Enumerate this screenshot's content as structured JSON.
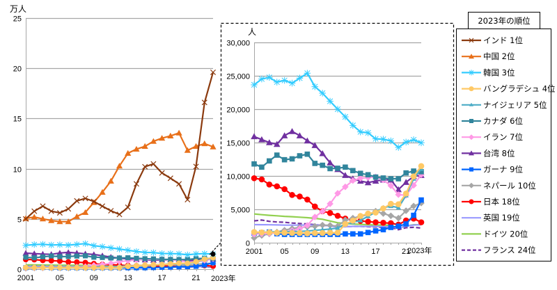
{
  "chart_data": [
    {
      "id": "main",
      "type": "line",
      "title": "",
      "ylabel": "万人",
      "xlabel": "",
      "ylim": [
        0,
        25
      ],
      "yticks": [
        0,
        5,
        10,
        15,
        20,
        25
      ],
      "ytick_labels": [
        "0",
        "5",
        "10",
        "15",
        "20",
        "25"
      ],
      "xlim": [
        2001,
        2023
      ],
      "xticks": [
        2001,
        2005,
        2009,
        2013,
        2017,
        2021
      ],
      "xtick_labels": [
        "2001",
        "05",
        "09",
        "13",
        "17",
        "21"
      ],
      "x_end_label": "2023年",
      "grid": "horizontal",
      "unit_divisor": 10000,
      "highlight_note": "2023 Korea point marked and linked to the detail inset"
    },
    {
      "id": "inset",
      "type": "line",
      "title": "",
      "ylabel": "人",
      "xlabel": "",
      "ylim": [
        0,
        30000
      ],
      "yticks": [
        0,
        5000,
        10000,
        15000,
        20000,
        25000,
        30000
      ],
      "ytick_labels": [
        "0",
        "5,000",
        "10,000",
        "15,000",
        "20,000",
        "25,000",
        "30,000"
      ],
      "xlim": [
        2001,
        2023
      ],
      "xticks": [
        2001,
        2005,
        2009,
        2013,
        2017,
        2021
      ],
      "xtick_labels": [
        "2001",
        "05",
        "09",
        "13",
        "17",
        "21"
      ],
      "x_end_label": "2023年",
      "grid": "horizontal",
      "series_shown": [
        "korea",
        "bangladesh",
        "nigeria",
        "canada",
        "iran",
        "taiwan",
        "ghana",
        "nepal",
        "japan",
        "uk",
        "germany",
        "france"
      ]
    }
  ],
  "x": [
    2001,
    2002,
    2003,
    2004,
    2005,
    2006,
    2007,
    2008,
    2009,
    2010,
    2011,
    2012,
    2013,
    2014,
    2015,
    2016,
    2017,
    2018,
    2019,
    2020,
    2021,
    2022,
    2023
  ],
  "series": [
    {
      "key": "india",
      "name": "インド 1位",
      "color": "#8B3A0E",
      "marker": "x",
      "dash": false,
      "values": [
        50000,
        57700,
        62700,
        57700,
        56000,
        60000,
        68000,
        70400,
        67400,
        62700,
        58100,
        54500,
        61600,
        84900,
        102000,
        104800,
        95800,
        90500,
        84900,
        69200,
        102200,
        166000,
        196000
      ]
    },
    {
      "key": "china",
      "name": "中国 2位",
      "color": "#E8701A",
      "marker": "triangle",
      "dash": false,
      "values": [
        50500,
        51900,
        50100,
        48400,
        47300,
        47300,
        52400,
        56500,
        66400,
        76600,
        87700,
        102700,
        115400,
        119500,
        122300,
        127300,
        130400,
        132700,
        135600,
        118300,
        122300,
        125000,
        121800
      ]
    },
    {
      "key": "korea",
      "name": "韓国 3位",
      "color": "#33CCFF",
      "marker": "asterisk",
      "dash": false,
      "values": [
        23650,
        24520,
        24760,
        24060,
        24310,
        23900,
        24650,
        25390,
        23370,
        22400,
        21190,
        20000,
        18850,
        17570,
        16600,
        16460,
        15560,
        15500,
        15250,
        14270,
        15070,
        15420,
        14970
      ]
    },
    {
      "key": "bangladesh",
      "name": "バングラデシュ 4位",
      "color": "#FFC966",
      "marker": "circle",
      "dash": false,
      "values": [
        1600,
        1550,
        1550,
        1500,
        1500,
        1450,
        1450,
        1400,
        1450,
        1450,
        1500,
        1500,
        2800,
        3300,
        4000,
        4370,
        4510,
        5140,
        5830,
        5760,
        7360,
        9930,
        11480
      ]
    },
    {
      "key": "nigeria",
      "name": "ナイジェリア 5位",
      "color": "#4BACC6",
      "marker": "smalltriangle",
      "dash": false,
      "values": [
        1500,
        1550,
        1600,
        1650,
        1650,
        1700,
        1700,
        1750,
        1850,
        1950,
        2050,
        2200,
        2810,
        3050,
        3330,
        3960,
        4580,
        5250,
        5490,
        5250,
        7080,
        9580,
        11040
      ]
    },
    {
      "key": "canada",
      "name": "カナダ 6位",
      "color": "#31859C",
      "marker": "square",
      "dash": false,
      "values": [
        11800,
        11320,
        12250,
        13120,
        12430,
        12560,
        13020,
        13260,
        11880,
        11600,
        11100,
        11150,
        11320,
        10800,
        10390,
        10180,
        9830,
        9690,
        9580,
        9580,
        10450,
        10730,
        10630
      ]
    },
    {
      "key": "iran",
      "name": "イラン 7位",
      "color": "#FF99E6",
      "marker": "diamond",
      "dash": false,
      "values": [
        1300,
        1350,
        1400,
        1500,
        1600,
        1800,
        2100,
        2600,
        3850,
        4700,
        5830,
        7400,
        8370,
        9310,
        9650,
        9760,
        9860,
        9410,
        8540,
        7200,
        7100,
        8600,
        10200
      ]
    },
    {
      "key": "taiwan",
      "name": "台湾 8位",
      "color": "#7030A0",
      "marker": "triangle",
      "dash": false,
      "values": [
        15900,
        15450,
        15000,
        14750,
        16040,
        16670,
        16040,
        15270,
        14580,
        13360,
        11980,
        10980,
        10100,
        9580,
        9240,
        9000,
        9240,
        9410,
        9410,
        7960,
        9060,
        9930,
        10100
      ]
    },
    {
      "key": "ghana",
      "name": "ガーナ 9位",
      "color": "#0066FF",
      "marker": "square",
      "dash": false,
      "values": [
        1430,
        1500,
        1600,
        1350,
        1250,
        1250,
        1250,
        1250,
        1250,
        1250,
        1250,
        1250,
        1320,
        1320,
        1320,
        1530,
        1770,
        1950,
        2290,
        2470,
        2810,
        4100,
        6400
      ]
    },
    {
      "key": "nepal",
      "name": "ネパール 10位",
      "color": "#A6A6A6",
      "marker": "diamond",
      "dash": false,
      "values": [
        730,
        1080,
        1320,
        1600,
        1870,
        2120,
        2290,
        2360,
        2470,
        2640,
        2600,
        2470,
        3400,
        3680,
        3960,
        4200,
        4720,
        4370,
        4030,
        3680,
        4790,
        5490,
        5940
      ]
    },
    {
      "key": "japan",
      "name": "日本 18位",
      "color": "#FF0000",
      "marker": "circle",
      "dash": false,
      "values": [
        9660,
        9480,
        8720,
        8440,
        8020,
        7150,
        6920,
        6460,
        5420,
        4720,
        4450,
        4030,
        3610,
        3330,
        3270,
        3160,
        3060,
        2990,
        2920,
        2710,
        3330,
        3610,
        3060
      ]
    },
    {
      "key": "uk",
      "name": "英国 19位",
      "color": "#9999FF",
      "marker": "none",
      "dash": false,
      "values": [
        2710,
        2700,
        2690,
        2670,
        2640,
        2640,
        2640,
        2640,
        2640,
        2640,
        2500,
        2360,
        2400,
        2450,
        2450,
        2450,
        2450,
        2400,
        2350,
        2200,
        2500,
        2650,
        2700
      ]
    },
    {
      "key": "germany",
      "name": "ドイツ 20位",
      "color": "#92D050",
      "marker": "none",
      "dash": false,
      "values": [
        4310,
        4200,
        4100,
        4030,
        3950,
        3900,
        3820,
        3750,
        3650,
        3510,
        3250,
        2990,
        2880,
        2800,
        2750,
        2700,
        2650,
        2650,
        2600,
        2200,
        2500,
        2700,
        2700
      ]
    },
    {
      "key": "france",
      "name": "フランス 24位",
      "color": "#7030A0",
      "marker": "none",
      "dash": true,
      "values": [
        3270,
        3400,
        3200,
        3100,
        3060,
        2950,
        2880,
        2810,
        2700,
        2600,
        2520,
        2470,
        2400,
        2450,
        2450,
        2400,
        2350,
        2300,
        2300,
        1950,
        2250,
        2300,
        2200
      ]
    }
  ],
  "legend": {
    "title": "2023年の順位",
    "placement": "right"
  }
}
